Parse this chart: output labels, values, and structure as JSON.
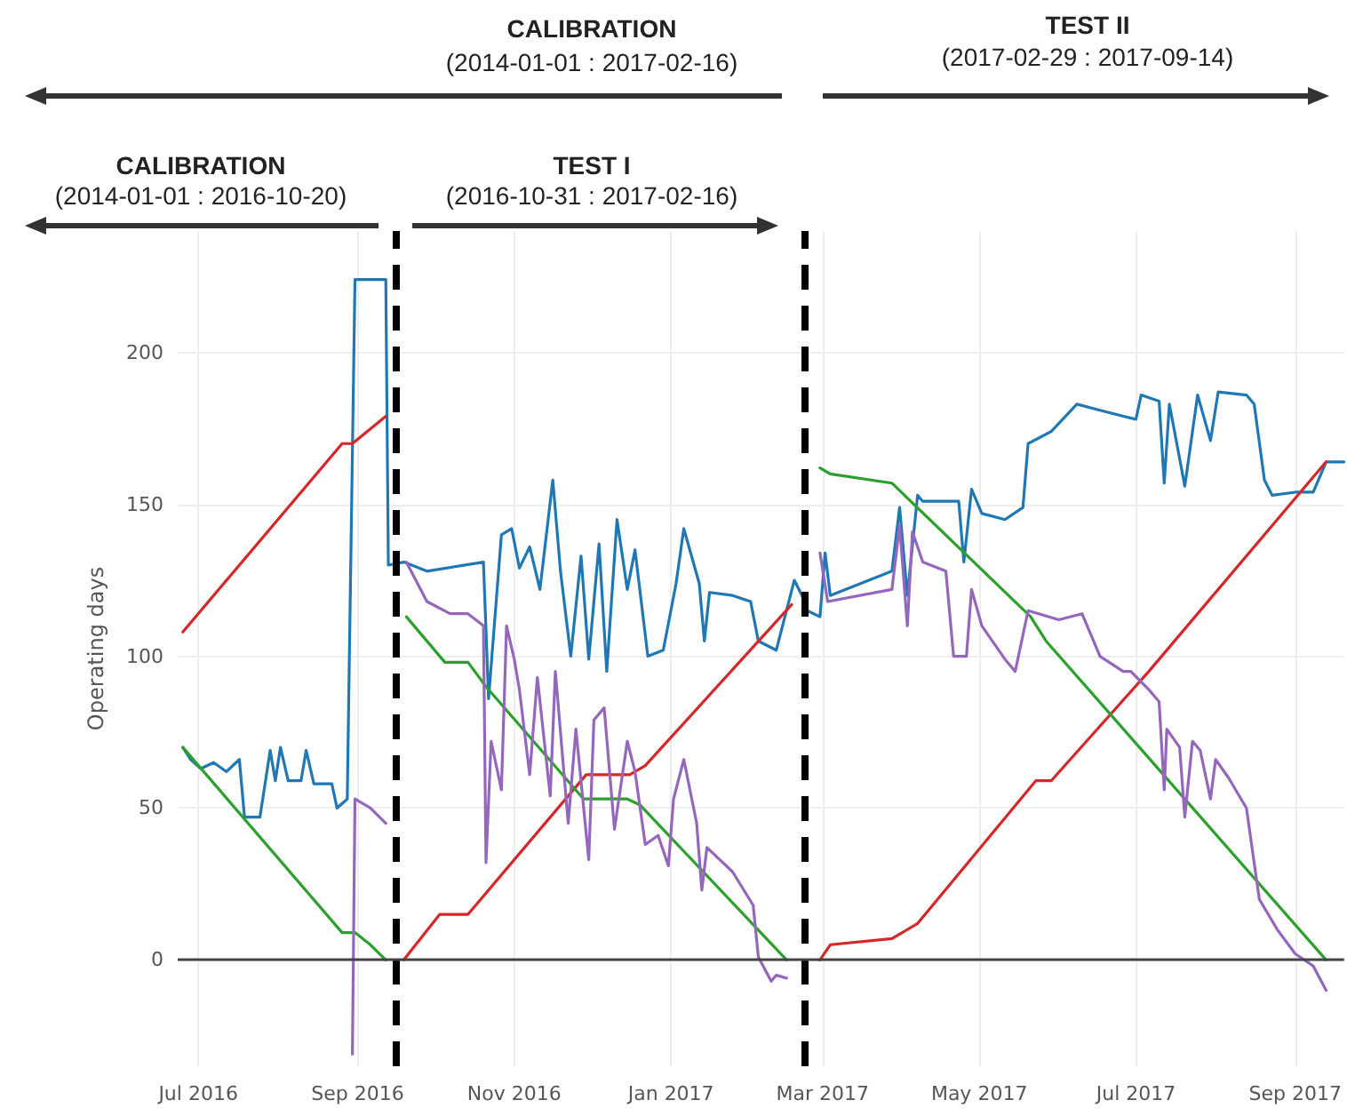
{
  "chart_data": {
    "type": "line",
    "ylabel": "Operating days",
    "annotations": [
      "CALIBRATION",
      "(2014-01-01 : 2017-02-16)",
      "TEST II",
      "(2017-02-29 : 2017-09-14)",
      "CALIBRATION",
      "(2014-01-01 : 2016-10-20)",
      "TEST I",
      "(2016-10-31 : 2017-02-16)"
    ],
    "xlim": [
      "2016-06-23",
      "2017-09-20"
    ],
    "xticks": [
      {
        "value": "2016-07-01",
        "label": "Jul 2016"
      },
      {
        "value": "2016-09-01",
        "label": "Sep 2016"
      },
      {
        "value": "2016-11-01",
        "label": "Nov 2016"
      },
      {
        "value": "2017-01-01",
        "label": "Jan 2017"
      },
      {
        "value": "2017-03-01",
        "label": "Mar 2017"
      },
      {
        "value": "2017-05-01",
        "label": "May 2017"
      },
      {
        "value": "2017-07-01",
        "label": "Jul 2017"
      },
      {
        "value": "2017-09-01",
        "label": "Sep 2017"
      }
    ],
    "ylim": [
      -35,
      240
    ],
    "yticks": [
      0,
      50,
      100,
      150,
      200
    ],
    "grid": true,
    "marker": "none",
    "line_style": "solid",
    "ref_lines": [
      {
        "axis": "x",
        "value": "2016-09-16",
        "color": "#000000",
        "line_style": "dashed"
      },
      {
        "axis": "x",
        "value": "2017-02-22",
        "color": "#000000",
        "line_style": "dashed"
      },
      {
        "axis": "y",
        "value": 0,
        "color": "#444444",
        "line_style": "solid"
      }
    ],
    "series": [
      {
        "color": "#1f77b4",
        "x": [
          "2016-06-25",
          "2016-06-28",
          "2016-07-02",
          "2016-07-07",
          "2016-07-12",
          "2016-07-17",
          "2016-07-19",
          "2016-07-25",
          "2016-07-29",
          "2016-07-31",
          "2016-08-02",
          "2016-08-05",
          "2016-08-10",
          "2016-08-12",
          "2016-08-15",
          "2016-08-22",
          "2016-08-24",
          "2016-08-28",
          "2016-08-31",
          "2016-09-12",
          "2016-09-13",
          "2016-09-19",
          "2016-09-28",
          "2016-10-20",
          "2016-10-22",
          "2016-10-27",
          "2016-10-31",
          "2016-11-03",
          "2016-11-07",
          "2016-11-11",
          "2016-11-16",
          "2016-11-19",
          "2016-11-23",
          "2016-11-27",
          "2016-11-30",
          "2016-12-04",
          "2016-12-07",
          "2016-12-11",
          "2016-12-15",
          "2016-12-18",
          "2016-12-23",
          "2016-12-29",
          "2017-01-03",
          "2017-01-06",
          "2017-01-12",
          "2017-01-14",
          "2017-01-16",
          "2017-01-25",
          "2017-02-01",
          "2017-02-04",
          "2017-02-11",
          "2017-02-18",
          "2017-02-21",
          "2017-02-23",
          "2017-02-28",
          "2017-03-02",
          "2017-03-04",
          "2017-03-28",
          "2017-03-31",
          "2017-04-03",
          "2017-04-07",
          "2017-04-09",
          "2017-04-18",
          "2017-04-23",
          "2017-04-25",
          "2017-04-28",
          "2017-05-02",
          "2017-05-11",
          "2017-05-18",
          "2017-05-20",
          "2017-05-29",
          "2017-06-08",
          "2017-06-17",
          "2017-07-01",
          "2017-07-03",
          "2017-07-10",
          "2017-07-12",
          "2017-07-14",
          "2017-07-20",
          "2017-07-25",
          "2017-07-30",
          "2017-08-02",
          "2017-08-13",
          "2017-08-16",
          "2017-08-20",
          "2017-08-23",
          "2017-09-01",
          "2017-09-08",
          "2017-09-13",
          "2017-09-20"
        ],
        "values": [
          70,
          66,
          63,
          65,
          62,
          66,
          47,
          47,
          69,
          59,
          70,
          59,
          59,
          69,
          58,
          58,
          50,
          53,
          224,
          224,
          130,
          131,
          128,
          131,
          86,
          140,
          142,
          129,
          136,
          122,
          158,
          128,
          100,
          133,
          99,
          137,
          95,
          145,
          122,
          135,
          100,
          102,
          124,
          142,
          124,
          105,
          121,
          120,
          118,
          105,
          102,
          125,
          120,
          115,
          113,
          134,
          120,
          128,
          149,
          120,
          153,
          151,
          151,
          151,
          131,
          155,
          147,
          145,
          149,
          170,
          174,
          183,
          181,
          178,
          186,
          184,
          157,
          183,
          156,
          186,
          171,
          187,
          186,
          183,
          158,
          153,
          154,
          154,
          164,
          164
        ]
      },
      {
        "color": "#d62728",
        "x": [
          "2016-06-25",
          "2016-08-26",
          "2016-08-30",
          "2016-09-12",
          "2016-09-15",
          "2016-09-19",
          "2016-10-03",
          "2016-10-14",
          "2016-11-29",
          "2016-12-16",
          "2016-12-22",
          "2017-02-17",
          "2017-02-22",
          "2017-02-28",
          "2017-03-04",
          "2017-03-28",
          "2017-04-07",
          "2017-05-23",
          "2017-05-29",
          "2017-07-06",
          "2017-09-13"
        ],
        "values": [
          108,
          170,
          170,
          179,
          null,
          0,
          15,
          15,
          61,
          61,
          64,
          117,
          null,
          0,
          5,
          7,
          12,
          59,
          59,
          95,
          164
        ]
      },
      {
        "color": "#2ca02c",
        "x": [
          "2016-06-25",
          "2016-08-26",
          "2016-08-31",
          "2016-09-06",
          "2016-09-12",
          "2016-09-15",
          "2016-09-20",
          "2016-10-05",
          "2016-10-14",
          "2016-10-21",
          "2016-11-28",
          "2016-12-15",
          "2016-12-20",
          "2017-02-15",
          "2017-02-22",
          "2017-02-28",
          "2017-03-04",
          "2017-03-28",
          "2017-05-21",
          "2017-05-27",
          "2017-09-13"
        ],
        "values": [
          70,
          9,
          9,
          5,
          0,
          null,
          113,
          98,
          98,
          90,
          53,
          53,
          51,
          0,
          null,
          162,
          160,
          157,
          113,
          105,
          0
        ]
      },
      {
        "color": "#9467bd",
        "x": [
          "2016-08-30",
          "2016-08-31",
          "2016-09-06",
          "2016-09-12",
          "2016-09-15",
          "2016-09-20",
          "2016-09-28",
          "2016-10-07",
          "2016-10-14",
          "2016-10-20",
          "2016-10-21",
          "2016-10-23",
          "2016-10-27",
          "2016-10-29",
          "2016-11-01",
          "2016-11-03",
          "2016-11-07",
          "2016-11-10",
          "2016-11-15",
          "2016-11-17",
          "2016-11-22",
          "2016-11-25",
          "2016-11-30",
          "2016-12-02",
          "2016-12-06",
          "2016-12-10",
          "2016-12-15",
          "2016-12-18",
          "2016-12-22",
          "2016-12-27",
          "2016-12-31",
          "2017-01-02",
          "2017-01-06",
          "2017-01-11",
          "2017-01-13",
          "2017-01-15",
          "2017-01-25",
          "2017-02-02",
          "2017-02-04",
          "2017-02-09",
          "2017-02-11",
          "2017-02-15",
          "2017-02-22",
          "2017-02-28",
          "2017-03-03",
          "2017-03-28",
          "2017-03-31",
          "2017-04-03",
          "2017-04-05",
          "2017-04-09",
          "2017-04-18",
          "2017-04-21",
          "2017-04-26",
          "2017-04-28",
          "2017-05-02",
          "2017-05-11",
          "2017-05-15",
          "2017-05-20",
          "2017-06-01",
          "2017-06-10",
          "2017-06-17",
          "2017-06-26",
          "2017-06-29",
          "2017-07-06",
          "2017-07-10",
          "2017-07-12",
          "2017-07-13",
          "2017-07-18",
          "2017-07-20",
          "2017-07-23",
          "2017-07-26",
          "2017-07-30",
          "2017-08-01",
          "2017-08-06",
          "2017-08-13",
          "2017-08-18",
          "2017-08-25",
          "2017-09-01",
          "2017-09-08",
          "2017-09-13"
        ],
        "values": [
          -31,
          53,
          50,
          45,
          null,
          131,
          118,
          114,
          114,
          110,
          32,
          72,
          56,
          110,
          99,
          89,
          61,
          93,
          54,
          95,
          45,
          76,
          33,
          79,
          83,
          43,
          72,
          62,
          38,
          41,
          31,
          53,
          66,
          45,
          23,
          37,
          29,
          18,
          1,
          -7,
          -5,
          -6,
          null,
          134,
          118,
          122,
          143,
          110,
          141,
          131,
          128,
          100,
          100,
          122,
          110,
          99,
          95,
          115,
          112,
          114,
          100,
          95,
          95,
          89,
          85,
          56,
          76,
          70,
          47,
          72,
          69,
          53,
          66,
          60,
          50,
          20,
          10,
          2,
          -2,
          -10
        ]
      }
    ]
  }
}
